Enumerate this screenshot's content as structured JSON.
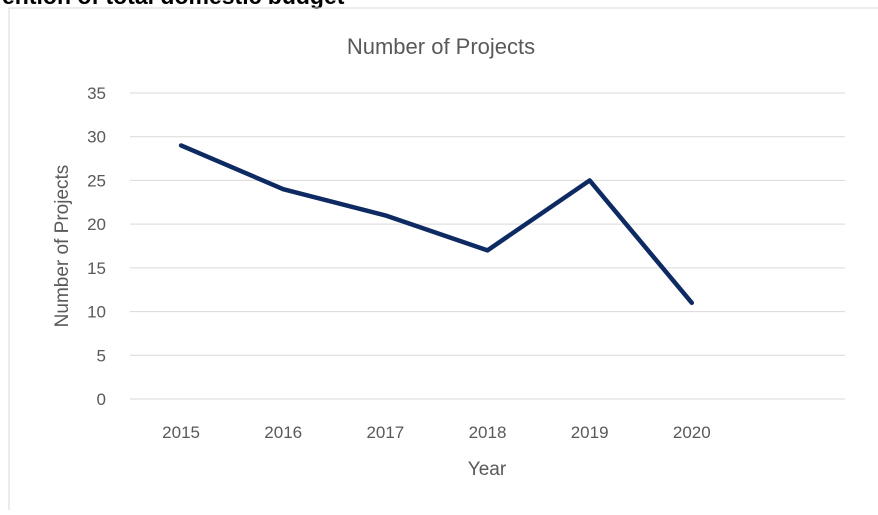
{
  "heading": "ention of total domestic budget",
  "chart_data": {
    "type": "line",
    "title": "Number of Projects",
    "x_label": "Year",
    "y_label": "Number of Projects",
    "categories": [
      "2015",
      "2016",
      "2017",
      "2018",
      "2019",
      "2020",
      null
    ],
    "series": [
      {
        "name": "Number of Projects",
        "color": "#0e2a63",
        "values": [
          29,
          24,
          21,
          17,
          25,
          11,
          null
        ]
      }
    ],
    "ylim": [
      0,
      35
    ],
    "yticks": [
      0,
      5,
      10,
      15,
      20,
      25,
      30,
      35
    ],
    "grid": true
  }
}
